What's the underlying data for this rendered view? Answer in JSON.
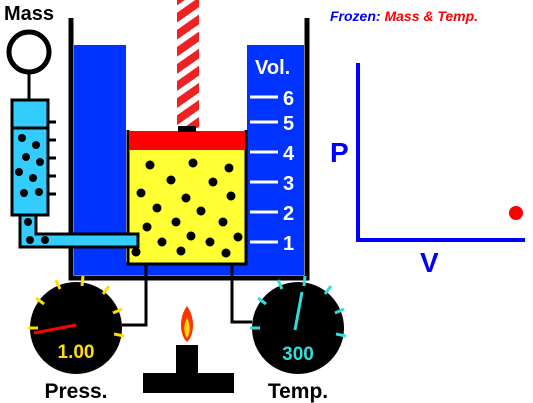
{
  "header": {
    "frozen_label": "Frozen:",
    "frozen_vars": "Mass & Temp.",
    "frozen_label_color": "#0000ff",
    "frozen_vars_color": "#ff0000"
  },
  "mass": {
    "label": "Mass"
  },
  "volume_scale": {
    "label": "Vol.",
    "ticks": [
      "1",
      "2",
      "3",
      "4",
      "5",
      "6"
    ]
  },
  "pressure_gauge": {
    "label": "Press.",
    "value": "1.00"
  },
  "temperature_gauge": {
    "label": "Temp.",
    "value": "300"
  },
  "pv_graph": {
    "p_label": "P",
    "v_label": "V"
  },
  "colors": {
    "water": "#0033ff",
    "gas": "#ffff33",
    "piston": "#ff0000",
    "tube": "#33ccff",
    "point": "#ff0000",
    "axes": "#0000ff"
  }
}
